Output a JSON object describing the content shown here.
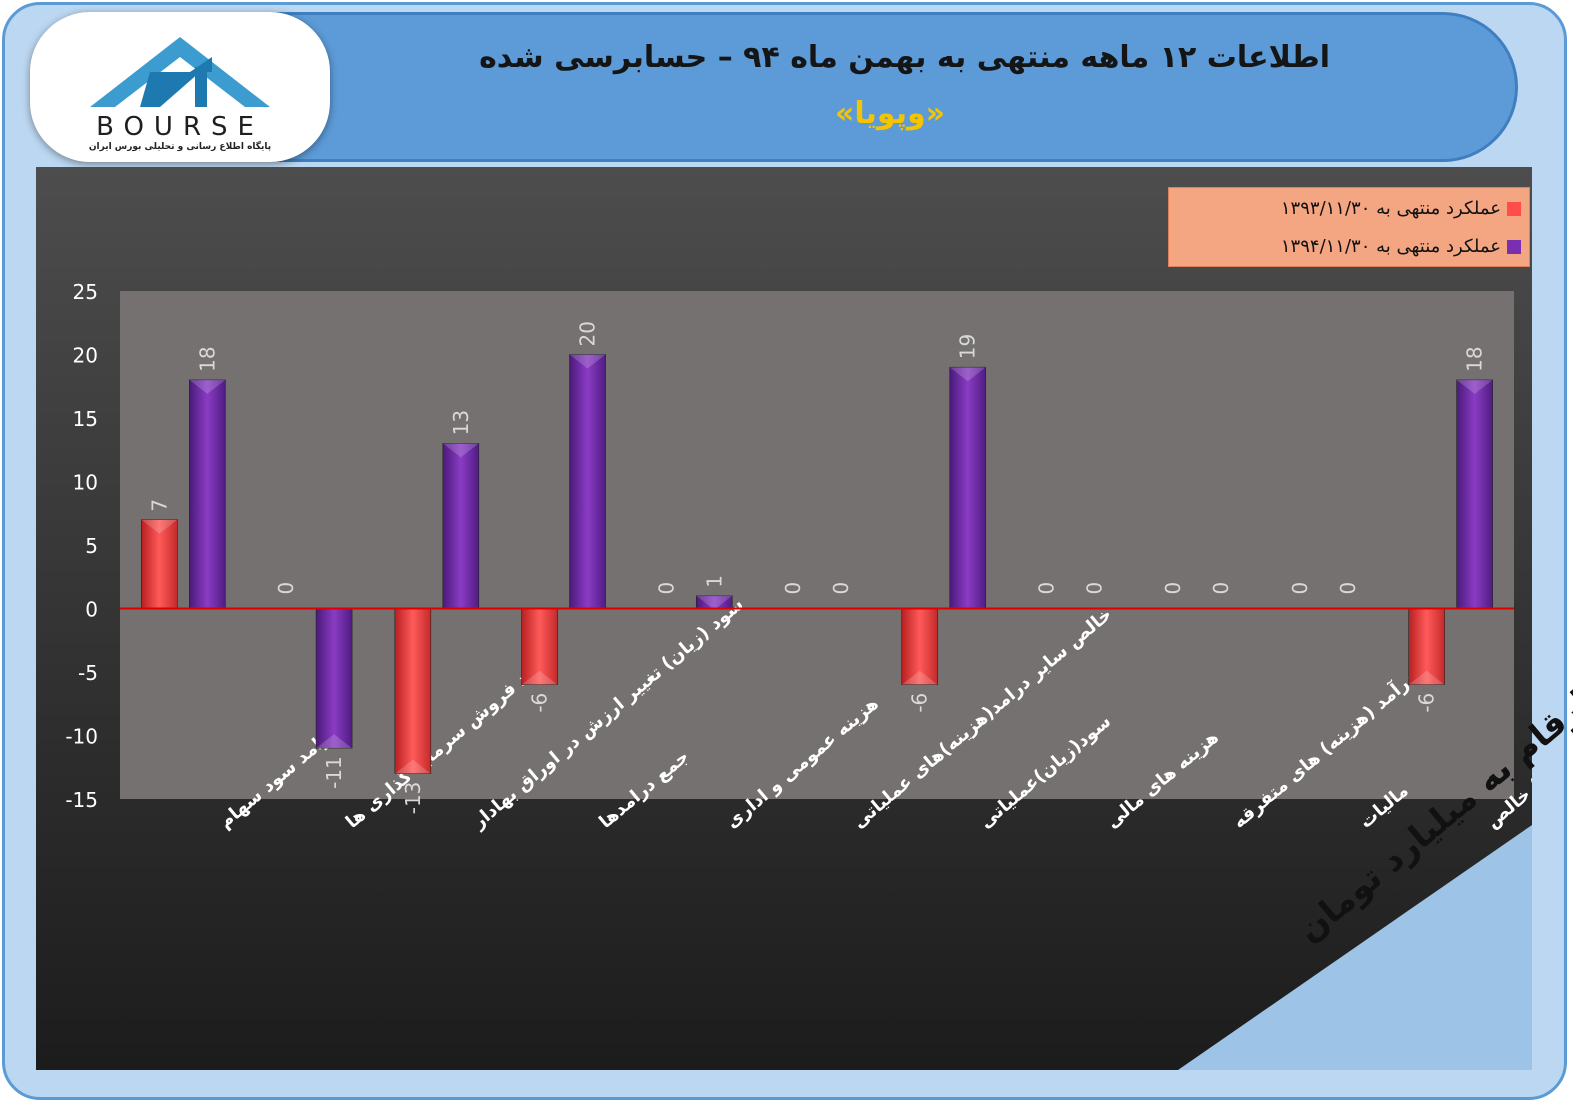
{
  "header": {
    "title": "اطلاعات ۱۲  ماهه منتهی به بهمن ماه ۹۴ – حسابرسی شده",
    "subtitle": "«وپویا»"
  },
  "logo": {
    "name": "BOURSE",
    "tagline": "پایگاه اطلاع رسانی و تحلیلی بورس ایران"
  },
  "unit_note": "ارقام به میلیارد تومان",
  "colors": {
    "series_1393": "#ff4d4d",
    "series_1394": "#7a2fb0",
    "zero_line": "#e00000",
    "plot_bg": "#767171"
  },
  "chart_data": {
    "type": "bar",
    "categories": [
      "درامد سود سهام",
      "سود فروش سرمایه گذاری ها",
      "سود (زیان) تغییر ارزش در اوراق بهادار",
      "جمع درامدها",
      "هزینه عمومی و اداری",
      "خالص سایر درامد(هزینه)های عملیاتی",
      "سود(زیان)عملیاتی",
      "هزینه های مالی",
      "درآمد (هزینه) های متفرقه",
      "مالیات",
      "سود(زیان) خالص"
    ],
    "series": [
      {
        "name": "عملکرد منتهی به ۱۳۹۳/۱۱/۳۰",
        "values": [
          7,
          0,
          -13,
          -6,
          0,
          0,
          -6,
          0,
          0,
          0,
          -6
        ]
      },
      {
        "name": "عملکرد منتهی به ۱۳۹۴/۱۱/۳۰",
        "values": [
          18,
          -11,
          13,
          20,
          1,
          0,
          19,
          0,
          0,
          0,
          18
        ]
      }
    ],
    "ylim": [
      -15,
      25
    ],
    "yticks": [
      25,
      20,
      15,
      10,
      5,
      0,
      -5,
      -10,
      -15
    ],
    "legend_position": "top-right"
  }
}
